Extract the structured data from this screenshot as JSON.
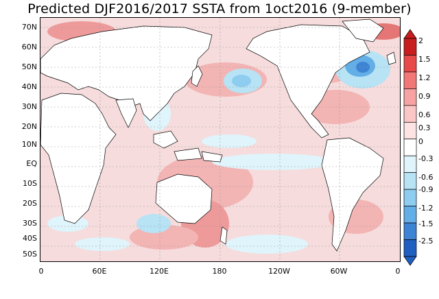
{
  "title": "Predicted DJF2016/2017 SSTA from 1oct2016 (9-member)",
  "lat_labels": [
    "70N",
    "60N",
    "50N",
    "40N",
    "30N",
    "20N",
    "10N",
    "EQ",
    "10S",
    "20S",
    "30S",
    "40S",
    "50S"
  ],
  "lon_labels": [
    "0",
    "60E",
    "120E",
    "180",
    "120W",
    "60W",
    "0"
  ],
  "colorbar": {
    "labels": [
      "2",
      "1.5",
      "1.2",
      "0.9",
      "0.6",
      "0.3",
      "0",
      "-0.3",
      "-0.6",
      "-0.9",
      "-1.2",
      "-1.5",
      "-2.5"
    ],
    "colors": [
      "#c81e1e",
      "#e84a4a",
      "#f27878",
      "#f7a3a3",
      "#fbc6c6",
      "#fde3e3",
      "#ffffff",
      "#dff4fb",
      "#b7e3f5",
      "#8ecdf0",
      "#63aee6",
      "#3d84d4",
      "#1f5fc2"
    ]
  },
  "land_color": "#ffffff",
  "ocean_base_color": "#f6dcdc"
}
